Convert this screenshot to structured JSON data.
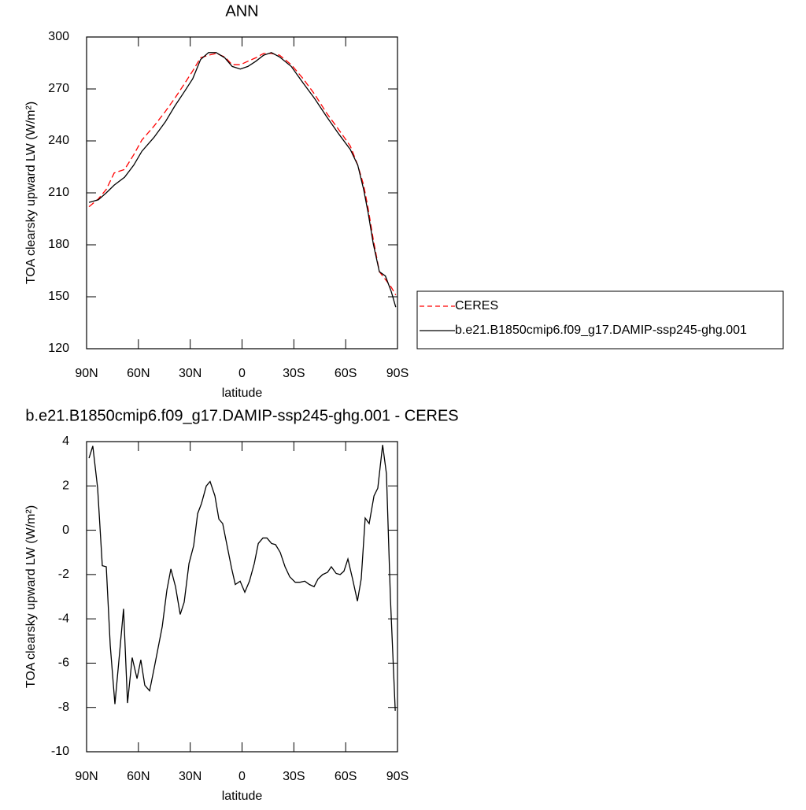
{
  "chart_data": [
    {
      "type": "line",
      "title": "ANN",
      "x_label": "latitude",
      "y_label": "TOA clearsky upward LW (W/m²)",
      "x": [
        88.6,
        83.2,
        78.6,
        74,
        68,
        62.7,
        58,
        51,
        44.4,
        39,
        33,
        28.5,
        24,
        19.4,
        15,
        10,
        5.7,
        1,
        -3.4,
        -8,
        -12.5,
        -17,
        -21.7,
        -28.5,
        -35.3,
        -42,
        -49,
        -56,
        -62.7,
        -67,
        -70.4,
        -73,
        -76,
        -79.5,
        -83,
        -86.4,
        -89
      ],
      "series": [
        {
          "name": "CERES",
          "color": "#ff0000",
          "dashed": true,
          "values": [
            202,
            206.5,
            212,
            221.5,
            223.5,
            232,
            240.5,
            248.5,
            257,
            264.5,
            273.5,
            280.5,
            288,
            289.5,
            290.5,
            288.5,
            284,
            284,
            286,
            288,
            290.5,
            290.5,
            289.5,
            284,
            276,
            267,
            256,
            246.5,
            237,
            226,
            214.5,
            201,
            183,
            164.5,
            160,
            155.5,
            151
          ]
        },
        {
          "name": "b.e21.B1850cmip6.f09_g17.DAMIP-ssp245-ghg.001",
          "color": "#000000",
          "dashed": false,
          "values": [
            204.5,
            206,
            210,
            214.5,
            219,
            226,
            234,
            242,
            251,
            260,
            269,
            276,
            287,
            291,
            291,
            288,
            283,
            281.5,
            283,
            286,
            289.5,
            291,
            288.5,
            283,
            273.5,
            264.5,
            254,
            244,
            235,
            226,
            212,
            198.5,
            180.5,
            164.5,
            162,
            153,
            144
          ]
        }
      ],
      "xlim": [
        90,
        -90
      ],
      "xticks": [
        {
          "value": 90,
          "label": "90N"
        },
        {
          "value": 60,
          "label": "60N"
        },
        {
          "value": 30,
          "label": "30N"
        },
        0,
        {
          "value": -30,
          "label": "30S"
        },
        {
          "value": -60,
          "label": "60S"
        },
        {
          "value": -90,
          "label": "90S"
        }
      ],
      "ylim": [
        120,
        300
      ],
      "yticks": [
        120,
        150,
        180,
        210,
        240,
        270,
        300
      ],
      "legend": "right"
    },
    {
      "type": "line",
      "title": "b.e21.B1850cmip6.f09_g17.DAMIP-ssp245-ghg.001 - CERES",
      "x_label": "latitude",
      "y_label": "TOA clearsky upward LW (W/m²)",
      "x": [
        88.6,
        86.4,
        83.6,
        80.9,
        78.6,
        76.3,
        73.6,
        70.9,
        68.6,
        66.3,
        63.6,
        60.8,
        58.6,
        56.3,
        53.5,
        50.8,
        46.2,
        43.5,
        41.2,
        38.5,
        35.8,
        33.5,
        30.7,
        28,
        25.7,
        23.5,
        20.7,
        18.5,
        15.7,
        13.4,
        11.2,
        8.9,
        6.1,
        3.9,
        1.1,
        -1.6,
        -4.3,
        -7.1,
        -9.4,
        -12.1,
        -14.4,
        -17.1,
        -19.4,
        -22.1,
        -24.9,
        -27.6,
        -30.8,
        -33.5,
        -36.3,
        -39,
        -41.7,
        -44,
        -46.7,
        -49.5,
        -51.7,
        -54.5,
        -56.8,
        -59,
        -61.3,
        -64,
        -66.8,
        -69,
        -71.3,
        -73.6,
        -76.4,
        -78.6,
        -81.4,
        -83.6,
        -85.9,
        -88.7
      ],
      "series": [
        {
          "color": "#000000",
          "dashed": false,
          "values": [
            3.25,
            3.8,
            1.9,
            -1.6,
            -1.65,
            -5.2,
            -7.85,
            -5.55,
            -3.55,
            -7.8,
            -5.75,
            -6.7,
            -5.85,
            -7,
            -7.25,
            -6.2,
            -4.35,
            -2.7,
            -1.75,
            -2.55,
            -3.8,
            -3.25,
            -1.5,
            -0.7,
            0.75,
            1.2,
            2,
            2.2,
            1.55,
            0.5,
            0.3,
            -0.6,
            -1.7,
            -2.45,
            -2.3,
            -2.8,
            -2.3,
            -1.5,
            -0.6,
            -0.35,
            -0.35,
            -0.6,
            -0.65,
            -1,
            -1.65,
            -2.1,
            -2.35,
            -2.35,
            -2.3,
            -2.45,
            -2.55,
            -2.2,
            -2,
            -1.9,
            -1.65,
            -1.95,
            -2,
            -1.85,
            -1.3,
            -2.2,
            -3.2,
            -2.2,
            0.55,
            0.3,
            1.55,
            1.9,
            3.85,
            2.55,
            -3.05,
            -8.15
          ]
        }
      ],
      "xlim": [
        90,
        -90
      ],
      "xticks": [
        {
          "value": 90,
          "label": "90N"
        },
        {
          "value": 60,
          "label": "60N"
        },
        {
          "value": 30,
          "label": "30N"
        },
        0,
        {
          "value": -30,
          "label": "30S"
        },
        {
          "value": -60,
          "label": "60S"
        },
        {
          "value": -90,
          "label": "90S"
        }
      ],
      "ylim": [
        -10,
        4
      ],
      "yticks": [
        -10,
        -8,
        -6,
        -4,
        -2,
        0,
        2,
        4
      ]
    }
  ]
}
